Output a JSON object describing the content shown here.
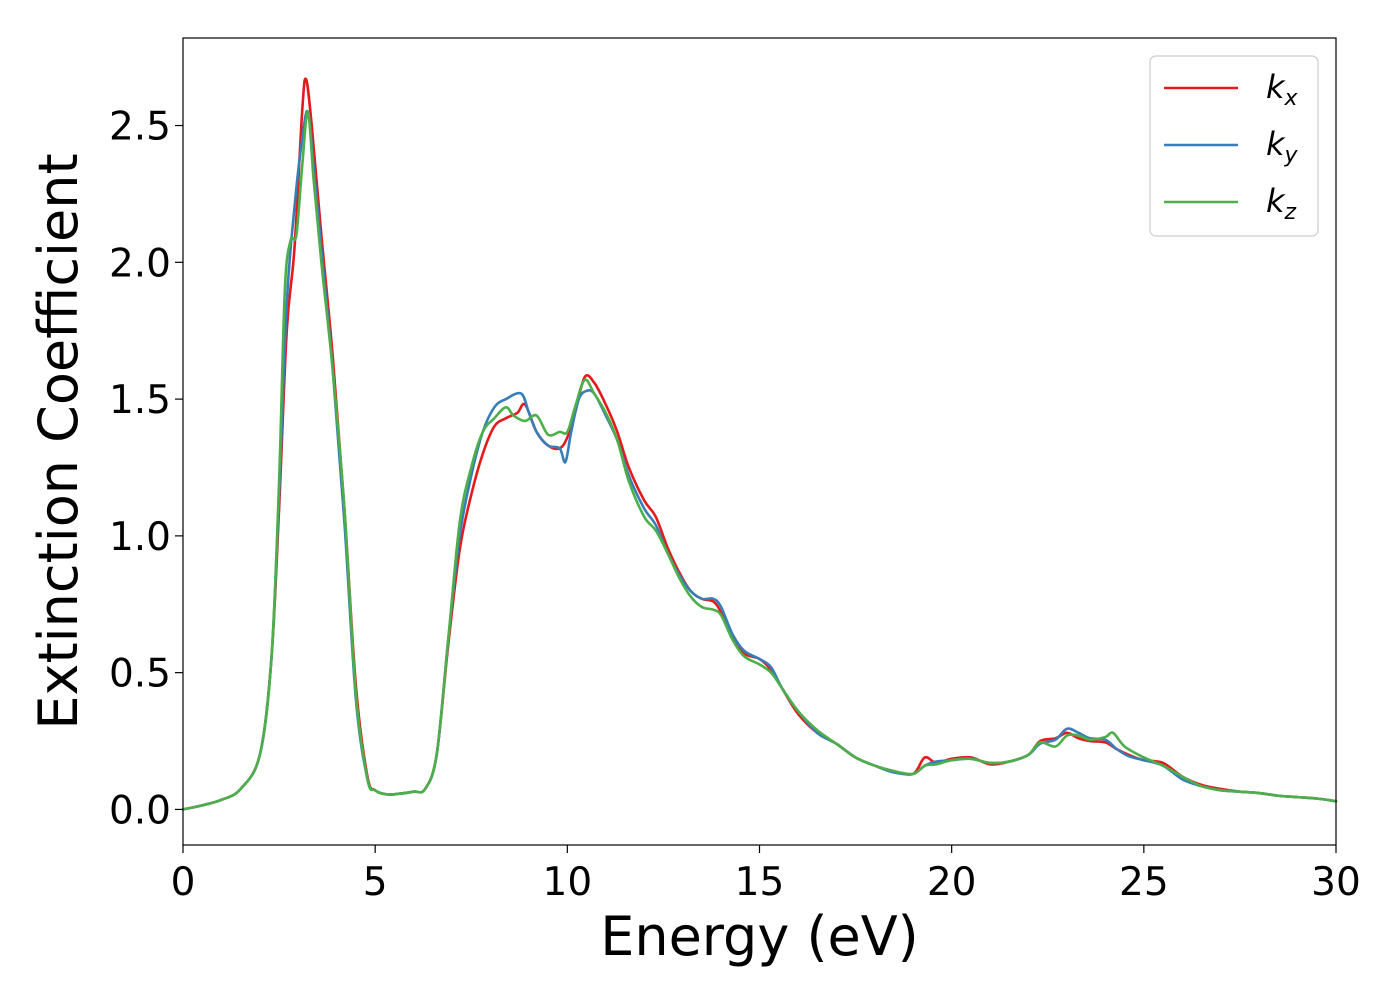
{
  "chart_data": {
    "type": "line",
    "title": "",
    "xlabel": "Energy (eV)",
    "ylabel": "Extinction Coefficient",
    "xlim": [
      0,
      30
    ],
    "ylim": [
      -0.13,
      2.82
    ],
    "xticks": [
      0,
      5,
      10,
      15,
      20,
      25,
      30
    ],
    "yticks": [
      0.0,
      0.5,
      1.0,
      1.5,
      2.0,
      2.5
    ],
    "xtick_labels": [
      "0",
      "5",
      "10",
      "15",
      "20",
      "25",
      "30"
    ],
    "ytick_labels": [
      "0.0",
      "0.5",
      "1.0",
      "1.5",
      "2.0",
      "2.5"
    ],
    "grid": false,
    "legend_position": "top-right",
    "series": [
      {
        "name": "kx",
        "label_base": "k",
        "label_sub": "x",
        "color": "#e41a1c",
        "x": [
          0,
          0.5,
          1.0,
          1.5,
          2.0,
          2.3,
          2.5,
          2.7,
          2.9,
          3.1,
          3.2,
          3.35,
          3.6,
          3.9,
          4.2,
          4.5,
          4.8,
          5.0,
          5.3,
          5.6,
          6.0,
          6.3,
          6.6,
          6.9,
          7.2,
          7.5,
          7.8,
          8.1,
          8.4,
          8.7,
          8.9,
          9.2,
          9.5,
          9.8,
          10.0,
          10.2,
          10.45,
          10.7,
          11.0,
          11.3,
          11.6,
          12.0,
          12.3,
          12.6,
          12.9,
          13.2,
          13.5,
          13.8,
          14.0,
          14.3,
          14.6,
          15.0,
          15.3,
          15.6,
          16.0,
          16.5,
          17.0,
          17.5,
          18.0,
          18.5,
          19.0,
          19.3,
          19.6,
          20.0,
          20.5,
          21.0,
          21.5,
          22.0,
          22.3,
          22.7,
          23.0,
          23.3,
          23.6,
          24.0,
          24.3,
          24.6,
          25.0,
          25.5,
          26.0,
          26.5,
          27.0,
          27.5,
          28.0,
          28.5,
          29.0,
          29.5,
          30.0
        ],
        "y": [
          0.0,
          0.015,
          0.035,
          0.075,
          0.2,
          0.55,
          1.1,
          1.75,
          2.05,
          2.55,
          2.67,
          2.5,
          2.1,
          1.65,
          1.1,
          0.45,
          0.12,
          0.07,
          0.055,
          0.057,
          0.065,
          0.075,
          0.2,
          0.6,
          0.95,
          1.15,
          1.3,
          1.4,
          1.43,
          1.45,
          1.48,
          1.38,
          1.33,
          1.32,
          1.36,
          1.45,
          1.58,
          1.56,
          1.48,
          1.38,
          1.25,
          1.13,
          1.07,
          0.96,
          0.87,
          0.8,
          0.77,
          0.76,
          0.72,
          0.63,
          0.57,
          0.55,
          0.51,
          0.44,
          0.35,
          0.28,
          0.24,
          0.19,
          0.16,
          0.14,
          0.13,
          0.19,
          0.17,
          0.185,
          0.19,
          0.165,
          0.175,
          0.2,
          0.25,
          0.26,
          0.28,
          0.26,
          0.25,
          0.245,
          0.22,
          0.2,
          0.18,
          0.17,
          0.12,
          0.09,
          0.075,
          0.065,
          0.06,
          0.05,
          0.045,
          0.04,
          0.03
        ]
      },
      {
        "name": "ky",
        "label_base": "k",
        "label_sub": "y",
        "color": "#377eb8",
        "x": [
          0,
          0.5,
          1.0,
          1.5,
          2.0,
          2.3,
          2.5,
          2.7,
          2.9,
          3.1,
          3.25,
          3.4,
          3.6,
          3.9,
          4.2,
          4.5,
          4.8,
          5.0,
          5.3,
          5.6,
          6.0,
          6.3,
          6.6,
          6.9,
          7.2,
          7.5,
          7.8,
          8.1,
          8.4,
          8.8,
          9.0,
          9.2,
          9.5,
          9.8,
          9.95,
          10.1,
          10.3,
          10.5,
          10.7,
          11.0,
          11.3,
          11.6,
          12.0,
          12.3,
          12.6,
          12.9,
          13.2,
          13.5,
          13.8,
          14.0,
          14.3,
          14.6,
          15.0,
          15.3,
          15.6,
          16.0,
          16.5,
          17.0,
          17.5,
          18.0,
          18.5,
          19.0,
          19.3,
          19.6,
          20.0,
          20.5,
          21.0,
          21.5,
          22.0,
          22.3,
          22.7,
          23.0,
          23.3,
          23.6,
          24.0,
          24.3,
          24.6,
          25.0,
          25.5,
          26.0,
          26.5,
          27.0,
          27.5,
          28.0,
          28.5,
          29.0,
          29.5,
          30.0
        ],
        "y": [
          0.0,
          0.015,
          0.035,
          0.075,
          0.2,
          0.55,
          1.15,
          1.85,
          2.2,
          2.45,
          2.55,
          2.35,
          2.05,
          1.6,
          1.05,
          0.4,
          0.11,
          0.07,
          0.055,
          0.057,
          0.065,
          0.075,
          0.2,
          0.62,
          1.0,
          1.22,
          1.38,
          1.47,
          1.5,
          1.52,
          1.45,
          1.38,
          1.33,
          1.32,
          1.27,
          1.38,
          1.5,
          1.53,
          1.52,
          1.44,
          1.35,
          1.22,
          1.1,
          1.04,
          0.94,
          0.86,
          0.8,
          0.77,
          0.77,
          0.74,
          0.64,
          0.58,
          0.55,
          0.52,
          0.44,
          0.36,
          0.28,
          0.24,
          0.19,
          0.16,
          0.135,
          0.13,
          0.16,
          0.175,
          0.18,
          0.185,
          0.17,
          0.175,
          0.2,
          0.24,
          0.255,
          0.295,
          0.28,
          0.26,
          0.255,
          0.22,
          0.195,
          0.18,
          0.16,
          0.11,
          0.085,
          0.07,
          0.065,
          0.06,
          0.05,
          0.045,
          0.04,
          0.03
        ]
      },
      {
        "name": "kz",
        "label_base": "k",
        "label_sub": "z",
        "color": "#4daf4a",
        "x": [
          0,
          0.5,
          1.0,
          1.5,
          2.0,
          2.3,
          2.5,
          2.65,
          2.8,
          2.95,
          3.1,
          3.25,
          3.4,
          3.6,
          3.9,
          4.2,
          4.5,
          4.8,
          5.0,
          5.3,
          5.6,
          6.0,
          6.3,
          6.6,
          6.9,
          7.2,
          7.5,
          7.8,
          8.1,
          8.4,
          8.6,
          8.9,
          9.2,
          9.5,
          9.8,
          10.0,
          10.2,
          10.45,
          10.7,
          11.0,
          11.3,
          11.6,
          12.0,
          12.3,
          12.6,
          12.9,
          13.2,
          13.5,
          13.8,
          14.0,
          14.3,
          14.6,
          15.0,
          15.3,
          15.6,
          16.0,
          16.5,
          17.0,
          17.5,
          18.0,
          18.5,
          19.0,
          19.3,
          19.6,
          20.0,
          20.5,
          21.0,
          21.5,
          22.0,
          22.3,
          22.7,
          23.0,
          23.3,
          23.6,
          24.0,
          24.2,
          24.5,
          25.0,
          25.5,
          26.0,
          26.5,
          27.0,
          27.5,
          28.0,
          28.5,
          29.0,
          29.5,
          30.0
        ],
        "y": [
          0.0,
          0.015,
          0.035,
          0.075,
          0.2,
          0.55,
          1.2,
          1.9,
          2.08,
          2.1,
          2.35,
          2.55,
          2.3,
          2.0,
          1.6,
          1.1,
          0.42,
          0.11,
          0.07,
          0.055,
          0.057,
          0.065,
          0.075,
          0.2,
          0.62,
          1.05,
          1.25,
          1.38,
          1.43,
          1.47,
          1.44,
          1.42,
          1.44,
          1.37,
          1.38,
          1.38,
          1.47,
          1.57,
          1.52,
          1.45,
          1.35,
          1.2,
          1.07,
          1.02,
          0.94,
          0.85,
          0.78,
          0.74,
          0.73,
          0.71,
          0.62,
          0.56,
          0.53,
          0.5,
          0.44,
          0.36,
          0.29,
          0.24,
          0.19,
          0.16,
          0.14,
          0.13,
          0.16,
          0.165,
          0.18,
          0.185,
          0.17,
          0.175,
          0.2,
          0.245,
          0.23,
          0.27,
          0.27,
          0.255,
          0.265,
          0.28,
          0.23,
          0.19,
          0.16,
          0.12,
          0.085,
          0.07,
          0.065,
          0.06,
          0.05,
          0.045,
          0.04,
          0.03
        ]
      }
    ]
  }
}
